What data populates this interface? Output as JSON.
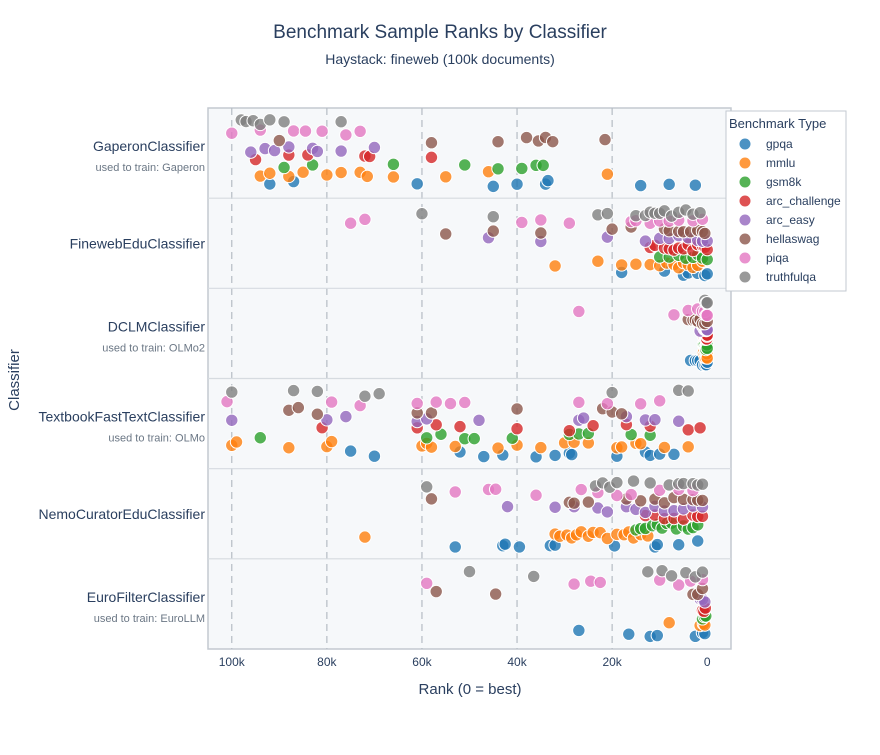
{
  "chart_data": {
    "type": "scatter",
    "title": "Benchmark Sample Ranks by Classifier",
    "subtitle": "Haystack: fineweb (100k documents)",
    "xlabel": "Rank (0 = best)",
    "ylabel": "Classifier",
    "xlim": [
      105000,
      -5000
    ],
    "x_ticks": [
      {
        "value": 100000,
        "label": "100k"
      },
      {
        "value": 80000,
        "label": "80k"
      },
      {
        "value": 60000,
        "label": "60k"
      },
      {
        "value": 40000,
        "label": "40k"
      },
      {
        "value": 20000,
        "label": "20k"
      },
      {
        "value": 0,
        "label": "0"
      }
    ],
    "grid": true,
    "legend": {
      "title": "Benchmark Type",
      "placement": "right"
    },
    "colors": {
      "gpqa": "#1f77b4",
      "mmlu": "#ff7f0e",
      "gsm8k": "#2ca02c",
      "arc_challenge": "#d62728",
      "arc_easy": "#9467bd",
      "hellaswag": "#8c564b",
      "piqa": "#e377c2",
      "truthfulqa": "#7f7f7f"
    },
    "benchmarks": [
      "gpqa",
      "mmlu",
      "gsm8k",
      "arc_challenge",
      "arc_easy",
      "hellaswag",
      "piqa",
      "truthfulqa"
    ],
    "classifiers": [
      {
        "name": "GaperonClassifier",
        "subtitle": "used to train: Gaperon",
        "points": {
          "gpqa": [
            92000,
            87000,
            61000,
            45000,
            40000,
            34000,
            33500,
            14000,
            8000,
            2500
          ],
          "mmlu": [
            94000,
            92000,
            88000,
            85000,
            80000,
            77000,
            73000,
            71500,
            66000,
            55000,
            46000,
            21000
          ],
          "gsm8k": [
            89000,
            83000,
            66000,
            51000,
            44000,
            39000,
            36000,
            34500
          ],
          "arc_challenge": [
            95000,
            88000,
            84000,
            72000,
            71000,
            58000
          ],
          "arc_easy": [
            96000,
            93000,
            91000,
            88000,
            83000,
            82000,
            77000,
            70000
          ],
          "hellaswag": [
            90000,
            58000,
            44000,
            38000,
            35500,
            34000,
            32500,
            21500
          ],
          "piqa": [
            100000,
            94000,
            87000,
            84500,
            81000,
            76000,
            73000
          ],
          "truthfulqa": [
            98000,
            97000,
            95500,
            94000,
            92000,
            89000,
            77000
          ]
        }
      },
      {
        "name": "FinewebEduClassifier",
        "subtitle": "",
        "points": {
          "gpqa": [
            18000,
            9000,
            5000,
            4000,
            2000,
            500,
            0
          ],
          "mmlu": [
            32000,
            23000,
            18000,
            15000,
            12000,
            10000,
            8500,
            7000,
            6000,
            5000,
            4000,
            3000,
            2000,
            1000
          ],
          "gsm8k": [
            10000,
            8000,
            6000,
            4500,
            3000,
            2000,
            1000,
            0
          ],
          "arc_challenge": [
            12000,
            11000,
            9000,
            8000,
            7000,
            6000,
            5000,
            4000,
            3000,
            2000,
            1000,
            500,
            0
          ],
          "arc_easy": [
            46000,
            35000,
            21000,
            13000,
            10000,
            8000,
            6000,
            4000,
            2000,
            1000,
            0
          ],
          "hellaswag": [
            55000,
            45000,
            35000,
            20000,
            16000,
            9000,
            8000,
            6000,
            5000,
            3500,
            2000,
            1000,
            500
          ],
          "piqa": [
            75000,
            72000,
            39000,
            35000,
            29000,
            16000,
            15000,
            12000,
            10000,
            8000,
            6000,
            3000,
            1000
          ],
          "truthfulqa": [
            60000,
            45000,
            23000,
            21000,
            15000,
            13000,
            12000,
            11000,
            10000,
            9000,
            7500,
            6000,
            4500,
            3000,
            1500
          ]
        }
      },
      {
        "name": "DCLMClassifier",
        "subtitle": "used to train: OLMo2",
        "points": {
          "gpqa": [
            3500,
            2500,
            2000,
            1500,
            1000,
            500,
            200,
            0
          ],
          "mmlu": [
            800,
            600,
            400,
            300,
            200,
            100,
            50,
            0
          ],
          "gsm8k": [
            800,
            600,
            400,
            300,
            200,
            100,
            50,
            0
          ],
          "arc_challenge": [
            800,
            600,
            400,
            300,
            200,
            100,
            50,
            0
          ],
          "arc_easy": [
            1500,
            1000,
            800,
            600,
            400,
            300,
            200,
            100,
            0
          ],
          "hellaswag": [
            4000,
            3000,
            2500,
            2000,
            1500,
            1000,
            500,
            0
          ],
          "piqa": [
            27000,
            7000,
            4000,
            2000,
            1000,
            500,
            200,
            0
          ],
          "truthfulqa": [
            500,
            200,
            0
          ]
        }
      },
      {
        "name": "TextbookFastTextClassifier",
        "subtitle": "used to train: OLMo",
        "points": {
          "gpqa": [
            75000,
            70000,
            52000,
            47000,
            43000,
            36000,
            32000,
            29000,
            28500,
            19000,
            13000,
            12000,
            10000,
            7000
          ],
          "mmlu": [
            100000,
            99000,
            88000,
            80000,
            79000,
            60000,
            59000,
            58000,
            53000,
            44000,
            40000,
            35000,
            30000,
            28000,
            25000,
            19000,
            18000,
            15000,
            14000,
            9000,
            4000
          ],
          "gsm8k": [
            94000,
            59000,
            56000,
            51000,
            49000,
            41000,
            29000,
            27000,
            25000,
            16000,
            12000
          ],
          "arc_challenge": [
            81000,
            61000,
            57000,
            52000,
            40000,
            29000,
            24000,
            17000,
            12000,
            4000,
            1500
          ],
          "arc_easy": [
            100000,
            80000,
            76000,
            61000,
            59000,
            48000,
            27000,
            26000,
            17000,
            13000,
            11000,
            6000
          ],
          "hellaswag": [
            88000,
            86000,
            82000,
            61000,
            58000,
            40000,
            22000,
            20000,
            18000
          ],
          "piqa": [
            101000,
            79000,
            73000,
            61000,
            57000,
            54000,
            51000,
            27000,
            21000,
            14000,
            10000
          ],
          "truthfulqa": [
            100000,
            87000,
            82000,
            72000,
            69000,
            20000,
            6000,
            4000
          ]
        }
      },
      {
        "name": "NemoCuratorEduClassifier",
        "subtitle": "",
        "points": {
          "gpqa": [
            53000,
            43000,
            42500,
            39500,
            33000,
            32000,
            19500,
            11000,
            10500,
            6000,
            2000
          ],
          "mmlu": [
            72000,
            32000,
            31000,
            29500,
            28500,
            27500,
            26500,
            25000,
            24000,
            22500,
            21000,
            19000,
            17500,
            16500,
            15500,
            14000,
            12500
          ],
          "gsm8k": [
            15000,
            14000,
            13000,
            11500,
            10500,
            9500,
            8500,
            7500,
            6500,
            5000,
            4000,
            3000,
            2000
          ],
          "arc_challenge": [
            13000,
            11000,
            9000,
            7000,
            5000,
            3000,
            2000,
            1000
          ],
          "arc_easy": [
            42000,
            32000,
            28000,
            23000,
            21000,
            17000,
            15000,
            13000,
            11000,
            9000,
            7000,
            5000,
            3000,
            1000
          ],
          "hellaswag": [
            58000,
            29000,
            28000,
            25000,
            17000,
            14000,
            11000,
            9000,
            7000,
            5000,
            3000,
            2000,
            1000
          ],
          "piqa": [
            53000,
            46000,
            44500,
            36000,
            26500,
            23000,
            19000,
            16000,
            10000,
            6000,
            3000
          ],
          "truthfulqa": [
            59000,
            23500,
            22000,
            20500,
            19000,
            15500,
            12000,
            8000,
            6000,
            5000,
            3000,
            2000,
            1000
          ]
        }
      },
      {
        "name": "EuroFilterClassifier",
        "subtitle": "used to train: EuroLLM",
        "points": {
          "gpqa": [
            27000,
            16500,
            12000,
            10500,
            2500,
            1000,
            500
          ],
          "mmlu": [
            8000,
            1500,
            800,
            500
          ],
          "gsm8k": [
            1000,
            600,
            300
          ],
          "arc_challenge": [
            1000,
            700,
            400
          ],
          "arc_easy": [
            1500,
            1000,
            500
          ],
          "hellaswag": [
            57000,
            44500,
            3000,
            2000,
            1000
          ],
          "piqa": [
            59000,
            28000,
            24500,
            22500,
            10000,
            6000,
            3500,
            1000
          ],
          "truthfulqa": [
            50000,
            36500,
            12500,
            9500,
            7500,
            4500,
            2500,
            1000
          ]
        }
      }
    ]
  }
}
